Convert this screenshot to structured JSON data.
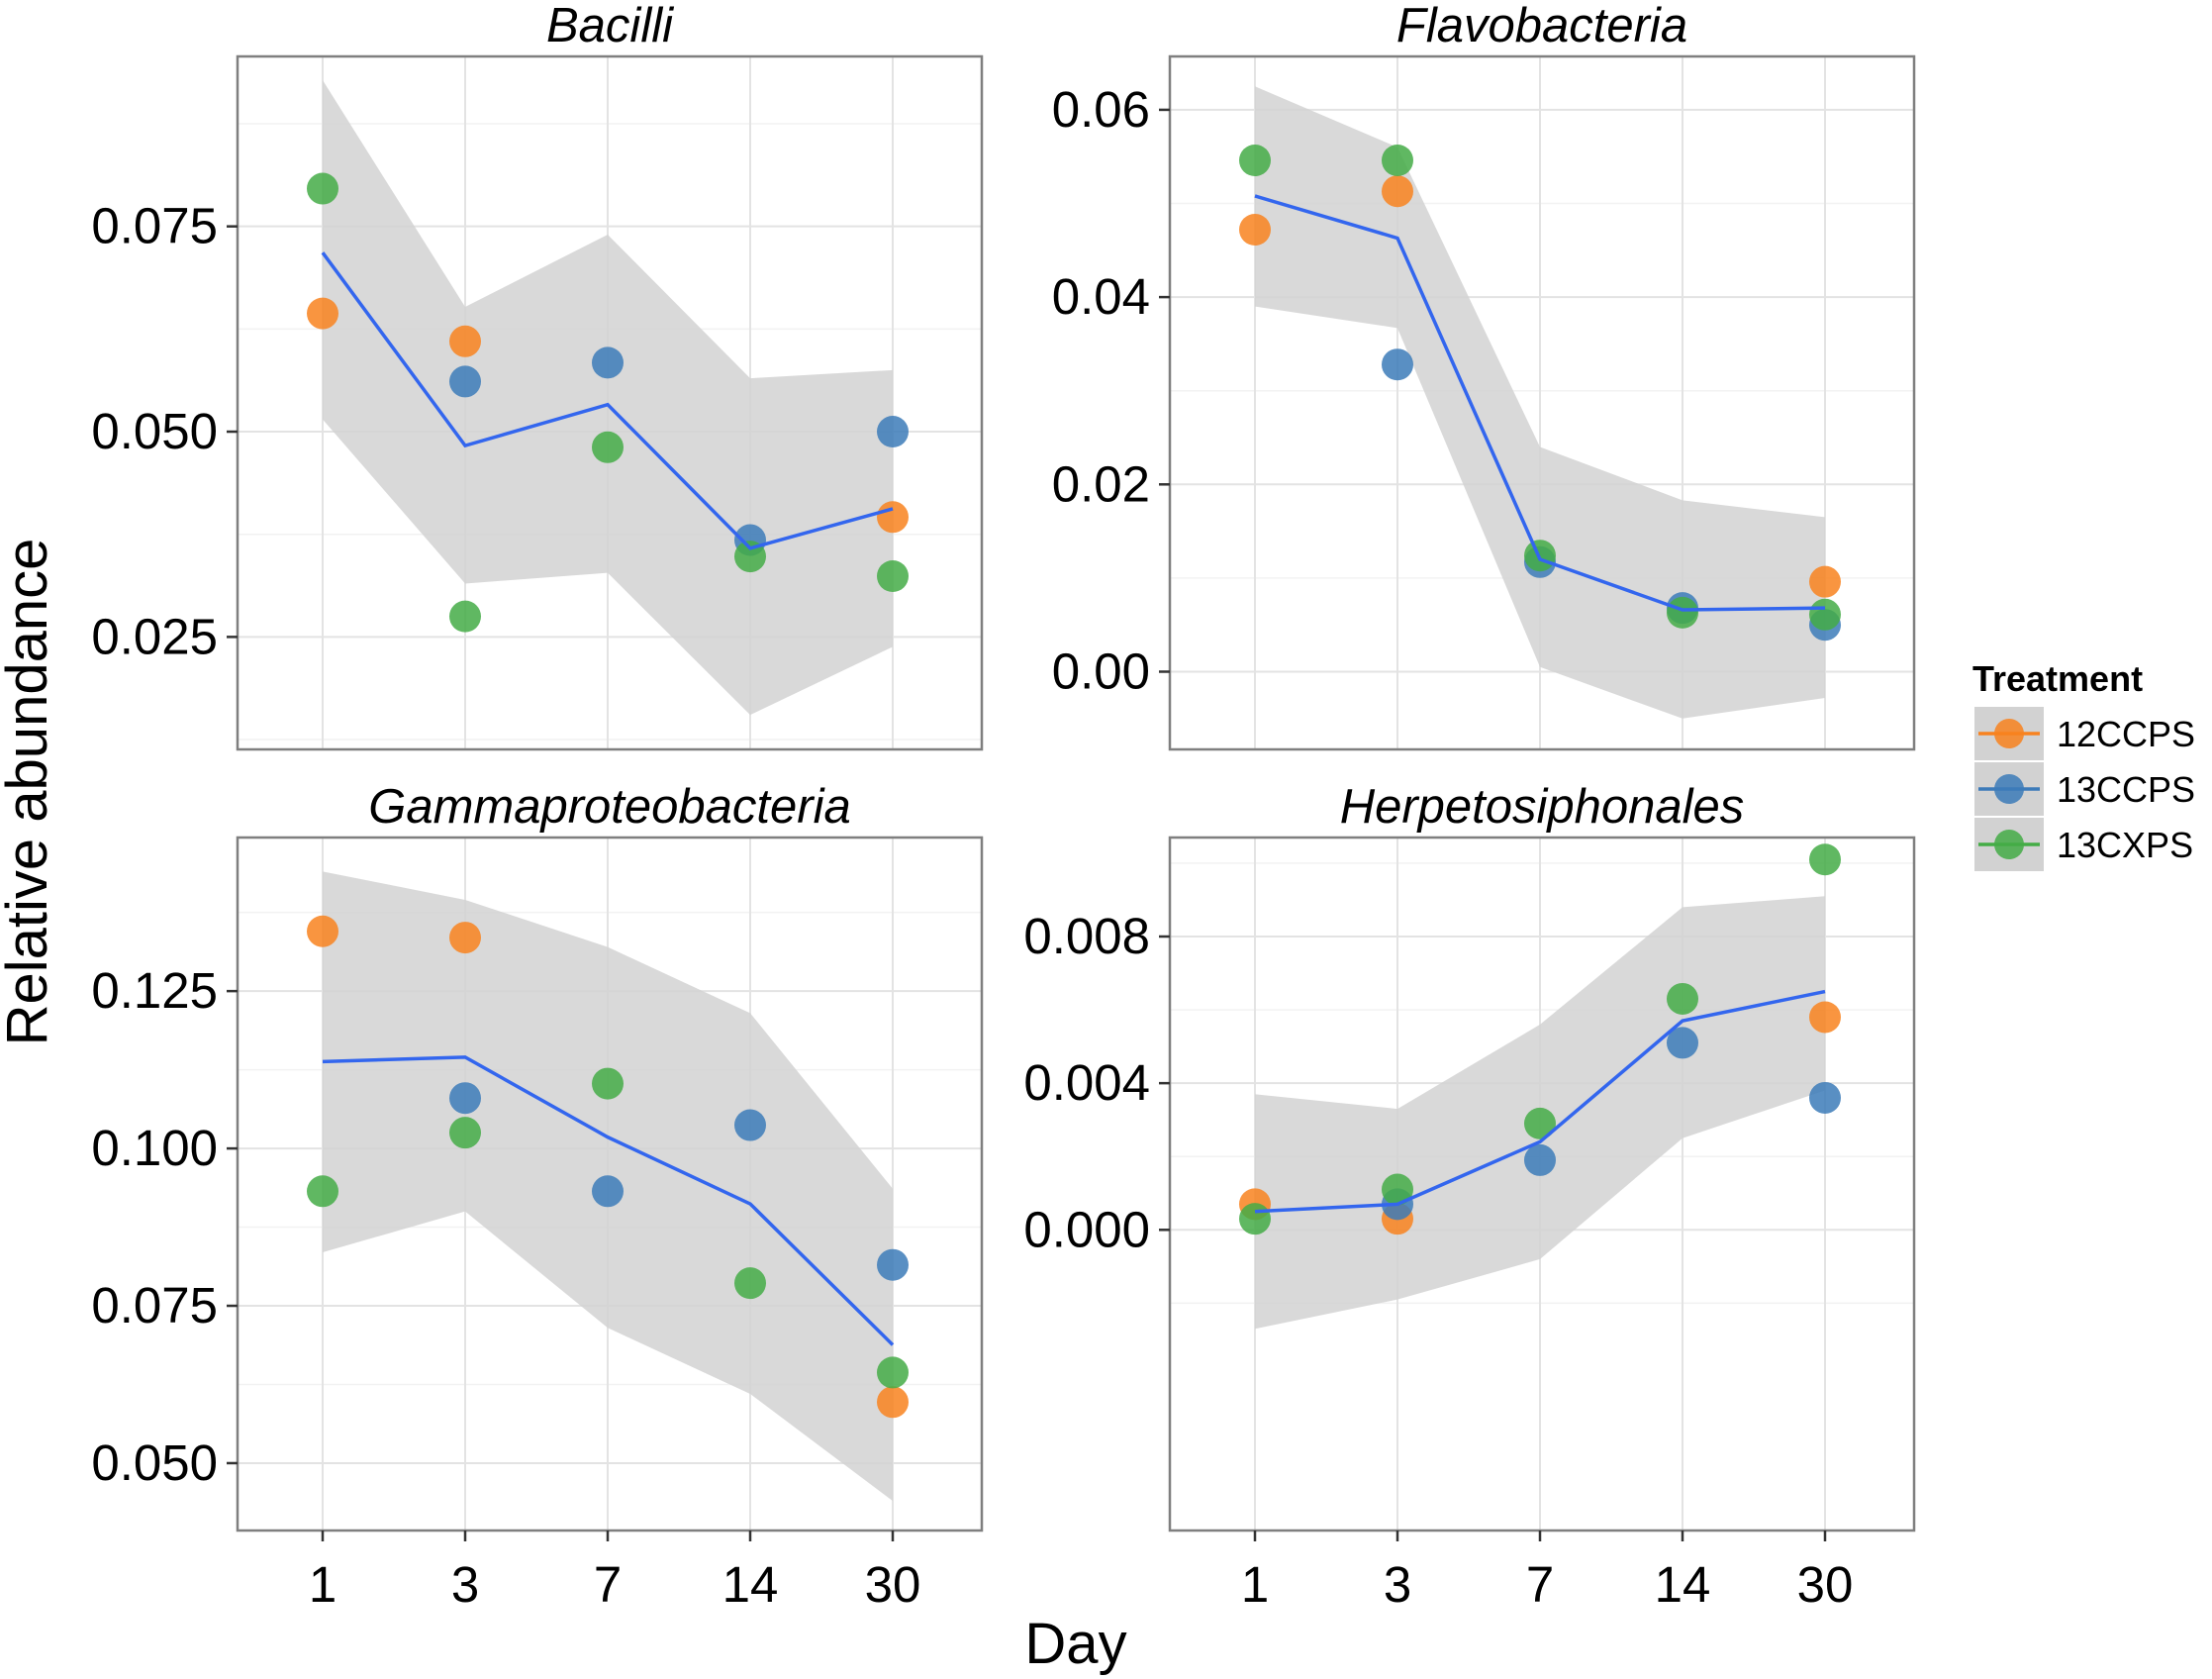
{
  "chart_data": {
    "type": "scatter",
    "xlabel": "Day",
    "ylabel": "Relative abundance",
    "x_categories": [
      "1",
      "3",
      "7",
      "14",
      "30"
    ],
    "legend": {
      "title": "Treatment",
      "position": "right",
      "entries": [
        {
          "name": "12CCPS",
          "color": "#F8821F"
        },
        {
          "name": "13CCPS",
          "color": "#3C7BB9"
        },
        {
          "name": "13CXPS",
          "color": "#44AC46"
        }
      ]
    },
    "trend_color": "#3366EE",
    "band_color": "#D2D2D2",
    "grid": true,
    "panels": [
      {
        "title": "Bacilli",
        "ylim": [
          0.0113,
          0.0957
        ],
        "yticks": [
          0.025,
          0.05,
          0.075
        ],
        "ytick_labels": [
          "0.025",
          "0.050",
          "0.075"
        ],
        "trend": [
          0.0718,
          0.0483,
          0.0533,
          0.0358,
          0.0406
        ],
        "band_upper": [
          0.0928,
          0.0652,
          0.074,
          0.0565,
          0.0575
        ],
        "band_lower": [
          0.0515,
          0.0315,
          0.0328,
          0.0155,
          0.0238
        ],
        "series": [
          {
            "name": "12CCPS",
            "values": [
              0.0644,
              0.061,
              null,
              null,
              0.0396
            ]
          },
          {
            "name": "13CCPS",
            "values": [
              null,
              0.0561,
              0.0584,
              0.0368,
              0.05
            ]
          },
          {
            "name": "13CXPS",
            "values": [
              0.0796,
              0.0275,
              0.0481,
              0.0348,
              0.0324
            ]
          }
        ]
      },
      {
        "title": "Flavobacteria",
        "ylim": [
          -0.0083,
          0.0657
        ],
        "yticks": [
          0.0,
          0.02,
          0.04,
          0.06
        ],
        "ytick_labels": [
          "0.00",
          "0.02",
          "0.04",
          "0.06"
        ],
        "trend": [
          0.0508,
          0.0463,
          0.012,
          0.0066,
          0.0068
        ],
        "band_upper": [
          0.0625,
          0.056,
          0.024,
          0.0183,
          0.0165
        ],
        "band_lower": [
          0.039,
          0.0367,
          0.0005,
          -0.005,
          -0.0028
        ],
        "series": [
          {
            "name": "12CCPS",
            "values": [
              0.0472,
              0.0513,
              null,
              null,
              0.0096
            ]
          },
          {
            "name": "13CCPS",
            "values": [
              null,
              0.0328,
              0.0117,
              0.0068,
              0.005
            ]
          },
          {
            "name": "13CXPS",
            "values": [
              0.0546,
              0.0546,
              0.0124,
              0.0063,
              0.0061
            ]
          }
        ]
      },
      {
        "title": "Gammaproteobacteria",
        "ylim": [
          0.0393,
          0.1494
        ],
        "yticks": [
          0.05,
          0.075,
          0.1,
          0.125
        ],
        "ytick_labels": [
          "0.050",
          "0.075",
          "0.100",
          "0.125"
        ],
        "trend": [
          0.1138,
          0.1145,
          0.1018,
          0.0912,
          0.0688
        ],
        "band_upper": [
          0.144,
          0.1395,
          0.132,
          0.1215,
          0.0936
        ],
        "band_lower": [
          0.0835,
          0.09,
          0.0715,
          0.061,
          0.044
        ],
        "series": [
          {
            "name": "12CCPS",
            "values": [
              0.1345,
              0.1335,
              null,
              null,
              0.0597
            ]
          },
          {
            "name": "13CCPS",
            "values": [
              null,
              0.108,
              0.0932,
              0.1037,
              0.0815
            ]
          },
          {
            "name": "13CXPS",
            "values": [
              0.0932,
              0.1025,
              0.1103,
              0.0786,
              0.0644
            ]
          }
        ]
      },
      {
        "title": "Herpetosiphonales",
        "ylim": [
          -0.0082,
          0.0107
        ],
        "yticks": [
          0.0,
          0.004,
          0.008
        ],
        "ytick_labels": [
          "0.000",
          "0.004",
          "0.008"
        ],
        "trend": [
          0.0005,
          0.0007,
          0.0024,
          0.0057,
          0.0065
        ],
        "band_upper": [
          0.0037,
          0.0033,
          0.0056,
          0.0088,
          0.0091
        ],
        "band_lower": [
          -0.0027,
          -0.0019,
          -0.0008,
          0.0025,
          0.0038
        ],
        "series": [
          {
            "name": "12CCPS",
            "values": [
              0.0007,
              0.0003,
              null,
              null,
              0.0058
            ]
          },
          {
            "name": "13CCPS",
            "values": [
              null,
              0.0007,
              0.0019,
              0.0051,
              0.0036
            ]
          },
          {
            "name": "13CXPS",
            "values": [
              0.0003,
              0.0011,
              0.0029,
              0.0063,
              0.0101
            ]
          }
        ]
      }
    ]
  }
}
